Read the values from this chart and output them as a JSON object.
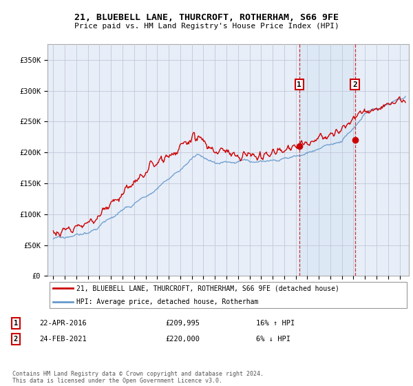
{
  "title1": "21, BLUEBELL LANE, THURCROFT, ROTHERHAM, S66 9FE",
  "title2": "Price paid vs. HM Land Registry's House Price Index (HPI)",
  "legend_line1": "21, BLUEBELL LANE, THURCROFT, ROTHERHAM, S66 9FE (detached house)",
  "legend_line2": "HPI: Average price, detached house, Rotherham",
  "sale1_date": "22-APR-2016",
  "sale1_price": "£209,995",
  "sale1_hpi": "16% ↑ HPI",
  "sale2_date": "24-FEB-2021",
  "sale2_price": "£220,000",
  "sale2_hpi": "6% ↓ HPI",
  "footnote": "Contains HM Land Registry data © Crown copyright and database right 2024.\nThis data is licensed under the Open Government Licence v3.0.",
  "hpi_color": "#6699cc",
  "price_color": "#cc0000",
  "vline_color": "#cc0000",
  "highlight_color": "#dce8f5",
  "bg_color": "#e8eef8",
  "grid_color": "#c0c8d8",
  "ylim": [
    0,
    375000
  ],
  "yticks": [
    0,
    50000,
    100000,
    150000,
    200000,
    250000,
    300000,
    350000
  ],
  "ytick_labels": [
    "£0",
    "£50K",
    "£100K",
    "£150K",
    "£200K",
    "£250K",
    "£300K",
    "£350K"
  ],
  "sale1_year": 2016.3,
  "sale2_year": 2021.12,
  "sale1_price_val": 209995,
  "sale2_price_val": 220000,
  "xmin": 1994.5,
  "xmax": 2025.8
}
